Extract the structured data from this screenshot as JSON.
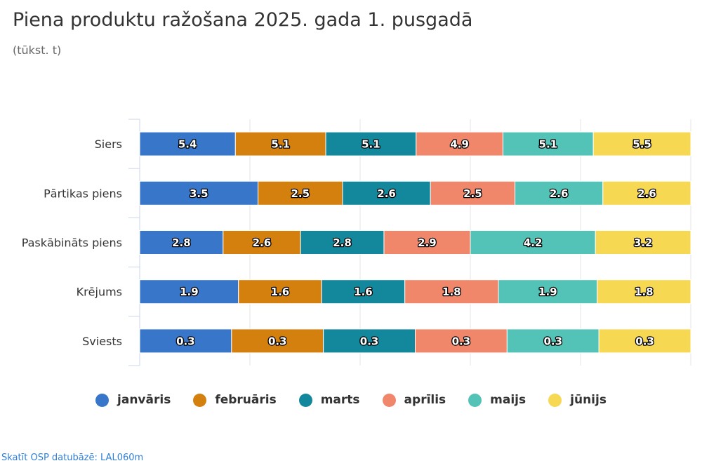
{
  "title": "Piena produktu ražošana 2025. gada 1. pusgadā",
  "subtitle": "(tūkst. t)",
  "source_link": "Skatīt OSP datubāzē: LAL060m",
  "chart_data": {
    "type": "bar",
    "orientation": "horizontal",
    "stacking": "percent",
    "title": "Piena produktu ražošana 2025. gada 1. pusgadā",
    "subtitle": "(tūkst. t)",
    "categories": [
      "Siers",
      "Pārtikas piens",
      "Paskābināts piens",
      "Krējums",
      "Sviests"
    ],
    "series": [
      {
        "name": "janvāris",
        "color": "#3776c9",
        "values": [
          5.4,
          3.5,
          2.8,
          1.9,
          0.3
        ]
      },
      {
        "name": "februāris",
        "color": "#d4800e",
        "values": [
          5.1,
          2.5,
          2.6,
          1.6,
          0.3
        ]
      },
      {
        "name": "marts",
        "color": "#13879b",
        "values": [
          5.1,
          2.6,
          2.8,
          1.6,
          0.3
        ]
      },
      {
        "name": "aprīlis",
        "color": "#f0866a",
        "values": [
          4.9,
          2.5,
          2.9,
          1.8,
          0.3
        ]
      },
      {
        "name": "maijs",
        "color": "#52c3b6",
        "values": [
          5.1,
          2.6,
          4.2,
          1.9,
          0.3
        ]
      },
      {
        "name": "jūnijs",
        "color": "#f7d853",
        "values": [
          5.5,
          2.6,
          3.2,
          1.8,
          0.3
        ]
      }
    ],
    "xlim": [
      0,
      100
    ],
    "grid": true,
    "legend": "bottom"
  }
}
